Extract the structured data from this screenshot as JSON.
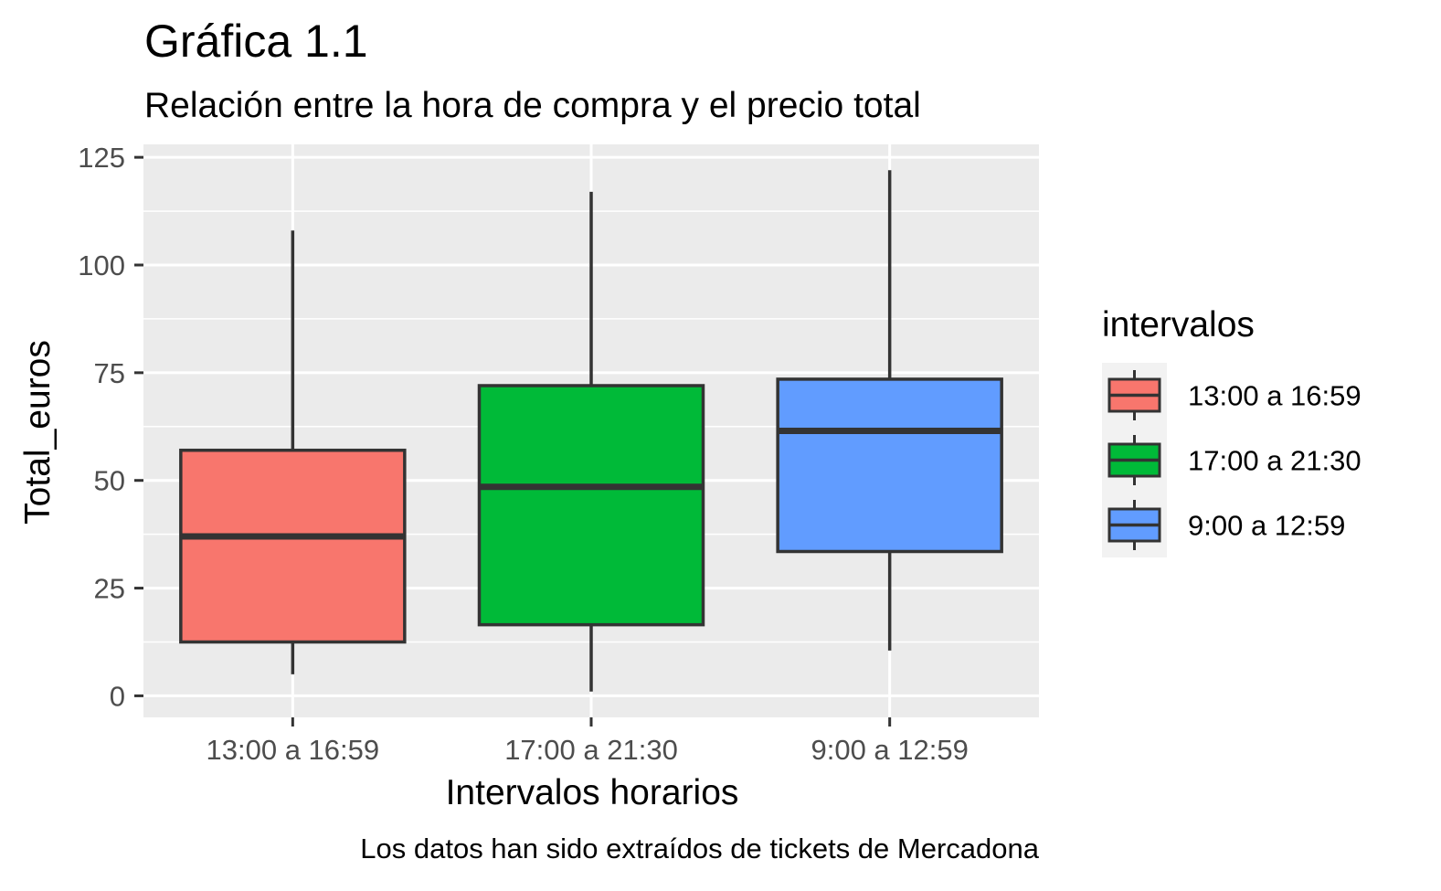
{
  "chart_data": {
    "type": "boxplot",
    "title": "Gráfica 1.1",
    "subtitle": "Relación entre la hora de compra y el precio total",
    "caption": "Los datos han sido extraídos de tickets de Mercadona",
    "xlabel": "Intervalos horarios",
    "ylabel": "Total_euros",
    "ylim": [
      -5,
      128
    ],
    "yticks": [
      0,
      25,
      50,
      75,
      100,
      125
    ],
    "grid": true,
    "legend": {
      "title": "intervalos",
      "position": "right"
    },
    "categories": [
      "13:00 a 16:59",
      "17:00 a 21:30",
      "9:00 a 12:59"
    ],
    "boxes": [
      {
        "name": "13:00 a 16:59",
        "min": 5,
        "q1": 12.5,
        "median": 37,
        "q3": 57,
        "max": 108,
        "color": "#F8766D"
      },
      {
        "name": "17:00 a 21:30",
        "min": 1,
        "q1": 16.5,
        "median": 48.5,
        "q3": 72,
        "max": 117,
        "color": "#00BA38"
      },
      {
        "name": "9:00 a 12:59",
        "min": 10.5,
        "q1": 33.5,
        "median": 61.5,
        "q3": 73.5,
        "max": 122,
        "color": "#619CFF"
      }
    ]
  }
}
